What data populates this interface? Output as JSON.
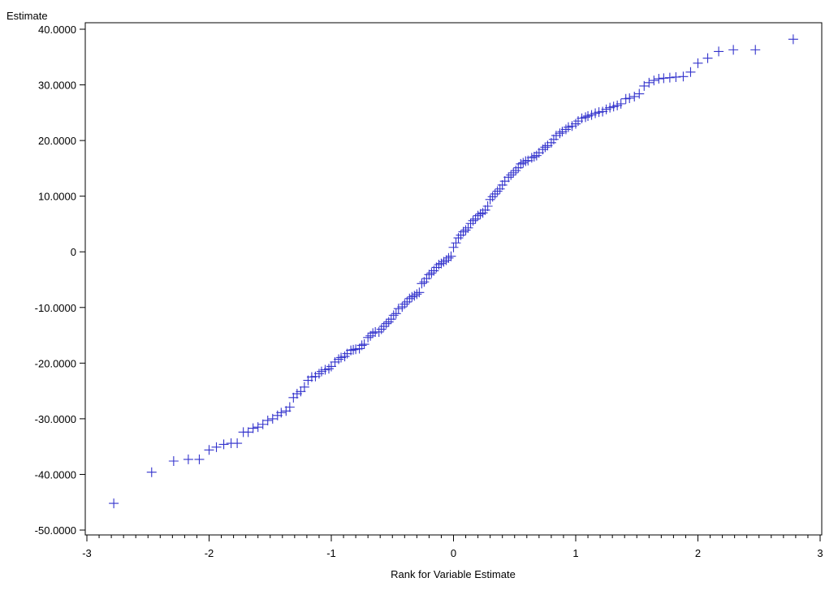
{
  "chart_data": {
    "type": "scatter",
    "title": "",
    "xlabel": "Rank for Variable Estimate",
    "ylabel": "Estimate",
    "xlim": [
      -3,
      3
    ],
    "ylim": [
      -50,
      40
    ],
    "xticks": [
      -3,
      -2,
      -1,
      0,
      1,
      2,
      3
    ],
    "xtick_labels": [
      "-3",
      "-2",
      "-1",
      "0",
      "1",
      "2",
      "3"
    ],
    "xminor_step": 0.1,
    "yticks": [
      -50,
      -40,
      -30,
      -20,
      -10,
      0,
      10,
      20,
      30,
      40
    ],
    "ytick_labels": [
      "-50.0000",
      "-40.0000",
      "-30.0000",
      "-20.0000",
      "-10.0000",
      "0",
      "10.0000",
      "20.0000",
      "30.0000",
      "40.0000"
    ],
    "grid": false,
    "marker": "plus",
    "marker_color": "#3333cc",
    "points": [
      [
        -2.78,
        -45.2
      ],
      [
        -2.47,
        -39.6
      ],
      [
        -2.29,
        -37.6
      ],
      [
        -2.17,
        -37.3
      ],
      [
        -2.08,
        -37.3
      ],
      [
        -2.0,
        -35.6
      ],
      [
        -1.94,
        -35.1
      ],
      [
        -1.88,
        -34.6
      ],
      [
        -1.82,
        -34.4
      ],
      [
        -1.77,
        -34.4
      ],
      [
        -1.72,
        -32.4
      ],
      [
        -1.68,
        -32.4
      ],
      [
        -1.64,
        -31.7
      ],
      [
        -1.6,
        -31.5
      ],
      [
        -1.56,
        -31.0
      ],
      [
        -1.52,
        -30.3
      ],
      [
        -1.48,
        -30.0
      ],
      [
        -1.44,
        -29.4
      ],
      [
        -1.41,
        -28.9
      ],
      [
        -1.37,
        -28.6
      ],
      [
        -1.34,
        -27.9
      ],
      [
        -1.31,
        -26.2
      ],
      [
        -1.28,
        -25.5
      ],
      [
        -1.25,
        -25.1
      ],
      [
        -1.22,
        -24.3
      ],
      [
        -1.19,
        -23.1
      ],
      [
        -1.16,
        -22.5
      ],
      [
        -1.13,
        -22.4
      ],
      [
        -1.1,
        -21.9
      ],
      [
        -1.08,
        -21.5
      ],
      [
        -1.05,
        -21.2
      ],
      [
        -1.02,
        -21.0
      ],
      [
        -1.0,
        -20.6
      ],
      [
        -0.97,
        -19.8
      ],
      [
        -0.94,
        -19.3
      ],
      [
        -0.92,
        -19.0
      ],
      [
        -0.89,
        -18.8
      ],
      [
        -0.87,
        -18.3
      ],
      [
        -0.84,
        -17.7
      ],
      [
        -0.82,
        -17.6
      ],
      [
        -0.8,
        -17.5
      ],
      [
        -0.77,
        -17.4
      ],
      [
        -0.75,
        -16.8
      ],
      [
        -0.73,
        -16.6
      ],
      [
        -0.7,
        -15.4
      ],
      [
        -0.68,
        -15.1
      ],
      [
        -0.66,
        -14.6
      ],
      [
        -0.64,
        -14.4
      ],
      [
        -0.61,
        -14.4
      ],
      [
        -0.59,
        -13.9
      ],
      [
        -0.57,
        -13.4
      ],
      [
        -0.55,
        -12.9
      ],
      [
        -0.53,
        -12.6
      ],
      [
        -0.51,
        -12.1
      ],
      [
        -0.49,
        -11.4
      ],
      [
        -0.47,
        -11.1
      ],
      [
        -0.45,
        -10.2
      ],
      [
        -0.42,
        -9.9
      ],
      [
        -0.4,
        -9.4
      ],
      [
        -0.38,
        -9.0
      ],
      [
        -0.36,
        -8.4
      ],
      [
        -0.34,
        -8.1
      ],
      [
        -0.32,
        -7.9
      ],
      [
        -0.3,
        -7.6
      ],
      [
        -0.28,
        -7.3
      ],
      [
        -0.26,
        -5.7
      ],
      [
        -0.24,
        -5.4
      ],
      [
        -0.22,
        -4.8
      ],
      [
        -0.2,
        -4.1
      ],
      [
        -0.18,
        -3.8
      ],
      [
        -0.16,
        -3.4
      ],
      [
        -0.14,
        -2.8
      ],
      [
        -0.12,
        -2.3
      ],
      [
        -0.1,
        -2.1
      ],
      [
        -0.08,
        -1.8
      ],
      [
        -0.06,
        -1.5
      ],
      [
        -0.04,
        -1.1
      ],
      [
        -0.02,
        -0.8
      ],
      [
        0.0,
        0.8
      ],
      [
        0.02,
        1.6
      ],
      [
        0.04,
        2.5
      ],
      [
        0.06,
        3.0
      ],
      [
        0.08,
        3.6
      ],
      [
        0.1,
        3.9
      ],
      [
        0.12,
        4.3
      ],
      [
        0.14,
        5.1
      ],
      [
        0.16,
        5.6
      ],
      [
        0.18,
        5.9
      ],
      [
        0.2,
        6.5
      ],
      [
        0.22,
        6.8
      ],
      [
        0.24,
        7.0
      ],
      [
        0.26,
        7.5
      ],
      [
        0.28,
        8.2
      ],
      [
        0.3,
        9.4
      ],
      [
        0.32,
        9.9
      ],
      [
        0.34,
        10.4
      ],
      [
        0.36,
        10.9
      ],
      [
        0.38,
        11.3
      ],
      [
        0.4,
        12.0
      ],
      [
        0.42,
        12.7
      ],
      [
        0.45,
        13.4
      ],
      [
        0.47,
        13.8
      ],
      [
        0.49,
        14.2
      ],
      [
        0.51,
        14.6
      ],
      [
        0.53,
        15.1
      ],
      [
        0.55,
        15.8
      ],
      [
        0.57,
        16.0
      ],
      [
        0.59,
        16.3
      ],
      [
        0.61,
        16.4
      ],
      [
        0.64,
        16.9
      ],
      [
        0.66,
        17.1
      ],
      [
        0.68,
        17.3
      ],
      [
        0.7,
        17.8
      ],
      [
        0.73,
        18.4
      ],
      [
        0.75,
        18.8
      ],
      [
        0.77,
        19.1
      ],
      [
        0.8,
        19.6
      ],
      [
        0.82,
        20.2
      ],
      [
        0.84,
        20.9
      ],
      [
        0.87,
        21.3
      ],
      [
        0.89,
        21.6
      ],
      [
        0.92,
        22.0
      ],
      [
        0.94,
        22.4
      ],
      [
        0.97,
        22.6
      ],
      [
        1.0,
        23.0
      ],
      [
        1.02,
        23.5
      ],
      [
        1.05,
        24.0
      ],
      [
        1.08,
        24.2
      ],
      [
        1.1,
        24.4
      ],
      [
        1.13,
        24.6
      ],
      [
        1.16,
        24.9
      ],
      [
        1.19,
        25.1
      ],
      [
        1.22,
        25.2
      ],
      [
        1.25,
        25.6
      ],
      [
        1.28,
        25.9
      ],
      [
        1.31,
        26.1
      ],
      [
        1.34,
        26.3
      ],
      [
        1.37,
        26.6
      ],
      [
        1.41,
        27.5
      ],
      [
        1.44,
        27.6
      ],
      [
        1.48,
        27.9
      ],
      [
        1.52,
        28.4
      ],
      [
        1.56,
        29.8
      ],
      [
        1.6,
        30.4
      ],
      [
        1.64,
        30.8
      ],
      [
        1.68,
        31.1
      ],
      [
        1.72,
        31.2
      ],
      [
        1.77,
        31.3
      ],
      [
        1.82,
        31.4
      ],
      [
        1.88,
        31.5
      ],
      [
        1.94,
        32.3
      ],
      [
        2.0,
        33.9
      ],
      [
        2.08,
        34.8
      ],
      [
        2.17,
        36.0
      ],
      [
        2.29,
        36.3
      ],
      [
        2.47,
        36.3
      ],
      [
        2.78,
        38.2
      ]
    ]
  }
}
